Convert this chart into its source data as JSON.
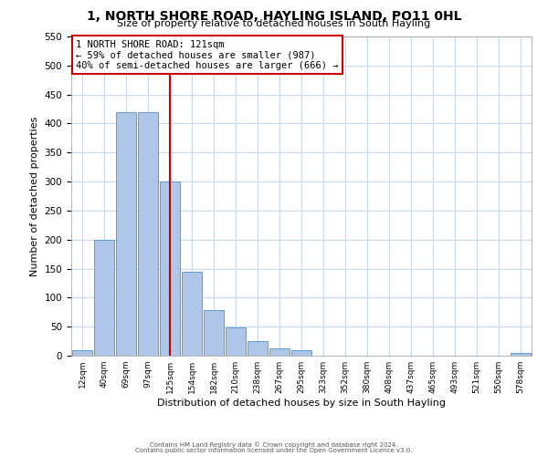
{
  "title": "1, NORTH SHORE ROAD, HAYLING ISLAND, PO11 0HL",
  "subtitle": "Size of property relative to detached houses in South Hayling",
  "xlabel": "Distribution of detached houses by size in South Hayling",
  "ylabel": "Number of detached properties",
  "bin_labels": [
    "12sqm",
    "40sqm",
    "69sqm",
    "97sqm",
    "125sqm",
    "154sqm",
    "182sqm",
    "210sqm",
    "238sqm",
    "267sqm",
    "295sqm",
    "323sqm",
    "352sqm",
    "380sqm",
    "408sqm",
    "437sqm",
    "465sqm",
    "493sqm",
    "521sqm",
    "550sqm",
    "578sqm"
  ],
  "bin_values": [
    10,
    200,
    420,
    420,
    300,
    145,
    78,
    48,
    25,
    13,
    9,
    0,
    0,
    0,
    0,
    0,
    0,
    0,
    0,
    0,
    5
  ],
  "bar_color": "#aec6e8",
  "bar_edge_color": "#5b9bd5",
  "vline_x_label": "125sqm",
  "vline_color": "#cc0000",
  "annotation_line1": "1 NORTH SHORE ROAD: 121sqm",
  "annotation_line2": "← 59% of detached houses are smaller (987)",
  "annotation_line3": "40% of semi-detached houses are larger (666) →",
  "annotation_box_color": "#cc0000",
  "ylim": [
    0,
    550
  ],
  "yticks": [
    0,
    50,
    100,
    150,
    200,
    250,
    300,
    350,
    400,
    450,
    500,
    550
  ],
  "footer_line1": "Contains HM Land Registry data © Crown copyright and database right 2024.",
  "footer_line2": "Contains public sector information licensed under the Open Government Licence v3.0.",
  "background_color": "#ffffff",
  "grid_color": "#c8d8e8"
}
